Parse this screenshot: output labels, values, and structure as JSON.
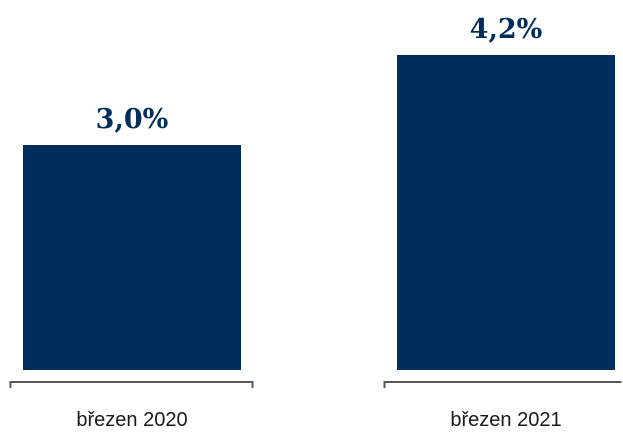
{
  "chart_data": {
    "type": "bar",
    "categories": [
      "březen 2020",
      "březen 2021"
    ],
    "values": [
      3.0,
      4.2
    ],
    "data_labels": [
      "3,0%",
      "4,2%"
    ],
    "title": "",
    "xlabel": "",
    "ylabel": "",
    "ylim": [
      0,
      4.6
    ],
    "grid": false,
    "legend": "none",
    "colors": {
      "bar": "#002D5C",
      "label": "#002D5C",
      "axis": "#595959",
      "category_text": "#1a1a1a"
    }
  }
}
